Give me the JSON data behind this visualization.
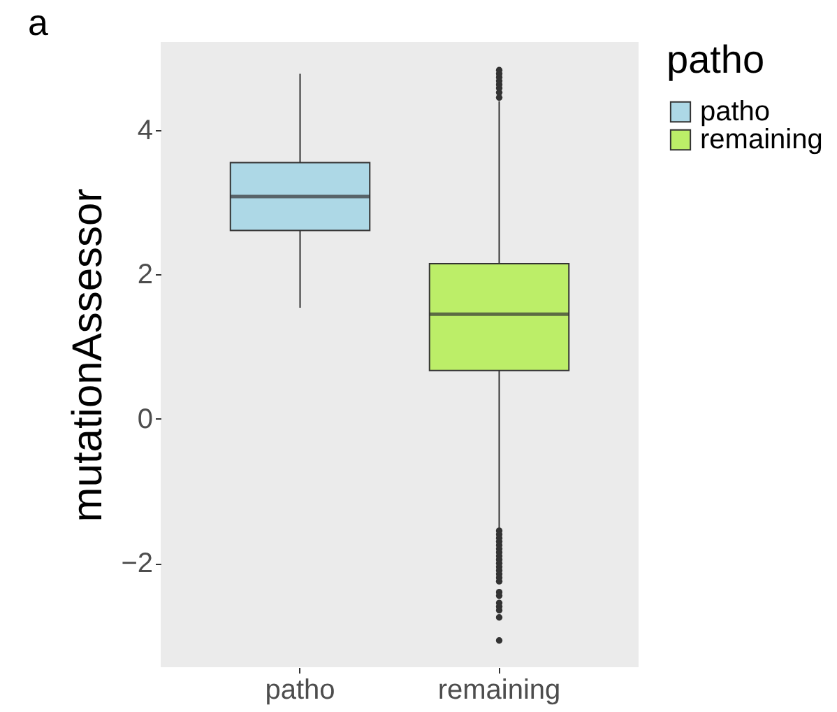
{
  "chart_data": {
    "type": "box",
    "ylabel": "mutationAssessor",
    "legend_title": "patho",
    "legend": "right",
    "grid": false,
    "annotations": [
      "a"
    ],
    "categories": [
      "patho",
      "remaining"
    ],
    "series": [
      {
        "name": "patho",
        "color": "#add8e6",
        "boxes": [
          {
            "low": 1.54,
            "q1": 2.61,
            "median": 3.08,
            "q3": 3.55,
            "high": 4.78
          },
          null
        ]
      },
      {
        "name": "remaining",
        "color": "#bcee68",
        "boxes": [
          null,
          {
            "low": -1.52,
            "q1": 0.67,
            "median": 1.45,
            "q3": 2.15,
            "high": 4.4,
            "outliers": [
              4.45,
              4.52,
              4.58,
              4.63,
              4.68,
              4.73,
              4.78,
              4.83,
              -1.55,
              -1.6,
              -1.65,
              -1.7,
              -1.75,
              -1.8,
              -1.85,
              -1.9,
              -1.95,
              -2.0,
              -2.05,
              -2.1,
              -2.15,
              -2.2,
              -2.25,
              -2.4,
              -2.45,
              -2.55,
              -2.6,
              -2.65,
              -2.75,
              -3.07
            ]
          }
        ]
      }
    ],
    "ylim": [
      -3.44,
      5.22
    ],
    "yticks": [
      -2,
      0,
      2,
      4
    ]
  }
}
